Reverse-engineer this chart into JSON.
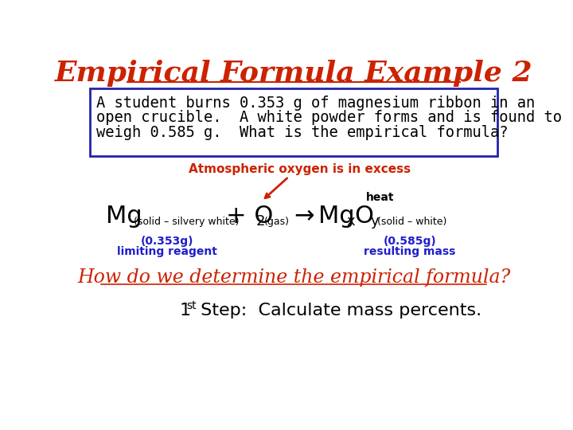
{
  "title": "Empirical Formula Example 2",
  "title_color": "#CC2200",
  "title_fontsize": 26,
  "bg_color": "#FFFFFF",
  "box_text_line1": "A student burns 0.353 g of magnesium ribbon in an",
  "box_text_line2": "open crucible.  A white powder forms and is found to",
  "box_text_line3": "weigh 0.585 g.  What is the empirical formula?",
  "box_color": "#2222AA",
  "atm_text": "Atmospheric oxygen is in excess",
  "atm_color": "#CC2200",
  "heat_text": "heat",
  "equation_color": "#000000",
  "label_color": "#1E1ECC",
  "left_label1": "(0.353g)",
  "left_label2": "limiting reagent",
  "right_label1": "(0.585g)",
  "right_label2": "resulting mass",
  "question_text": "How do we determine the empirical formula?",
  "question_color": "#CC2200",
  "step_color": "#000000"
}
